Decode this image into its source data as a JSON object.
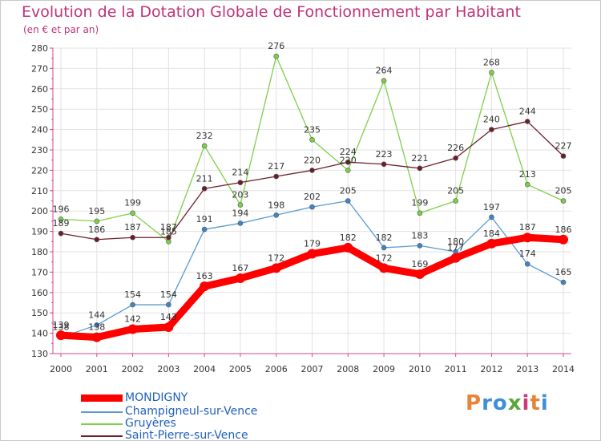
{
  "header": {
    "title": "Evolution de la Dotation Globale de Fonctionnement par Habitant",
    "subtitle": "(en € et par an)"
  },
  "brand": {
    "text": "Proxiti",
    "colors": [
      "#e8833a",
      "#3f8fd6",
      "#3f8fd6",
      "#5aa63a",
      "#d13a7a",
      "#e8833a",
      "#3f8fd6"
    ]
  },
  "chart_data": {
    "type": "line",
    "title": "Evolution de la Dotation Globale de Fonctionnement par Habitant",
    "subtitle": "(en € et par an)",
    "xlabel": "",
    "ylabel": "",
    "x": [
      "2000",
      "2001",
      "2002",
      "2003",
      "2004",
      "2005",
      "2006",
      "2007",
      "2008",
      "2009",
      "2010",
      "2011",
      "2012",
      "2013",
      "2014"
    ],
    "ylim": [
      130,
      280
    ],
    "yticks": [
      130,
      140,
      150,
      160,
      170,
      180,
      190,
      200,
      210,
      220,
      230,
      240,
      250,
      260,
      270,
      280
    ],
    "grid": true,
    "legend_position": "bottom-left",
    "series": [
      {
        "name": "Gruyères",
        "color": "#7dcf48",
        "marker": "#7dcf48",
        "values": [
          196,
          195,
          199,
          185,
          232,
          203,
          276,
          235,
          220,
          264,
          199,
          205,
          268,
          213,
          205
        ]
      },
      {
        "name": "Saint-Pierre-sur-Vence",
        "color": "#6b1e2a",
        "marker": "#6b1e2a",
        "values": [
          189,
          186,
          187,
          187,
          211,
          214,
          217,
          220,
          224,
          223,
          221,
          226,
          240,
          244,
          227
        ]
      },
      {
        "name": "Champigneul-sur-Vence",
        "color": "#5b9bd1",
        "marker": "#3e86c9",
        "values": [
          138,
          144,
          154,
          154,
          191,
          194,
          198,
          202,
          205,
          182,
          183,
          180,
          197,
          174,
          165
        ]
      },
      {
        "name": "MONDIGNY",
        "color": "#ff0000",
        "marker": "#ff0000",
        "values": [
          139,
          138,
          142,
          143,
          163,
          167,
          172,
          179,
          182,
          172,
          169,
          177,
          184,
          187,
          186
        ]
      }
    ],
    "legend_order": [
      "MONDIGNY",
      "Champigneul-sur-Vence",
      "Gruyères",
      "Saint-Pierre-sur-Vence"
    ]
  }
}
